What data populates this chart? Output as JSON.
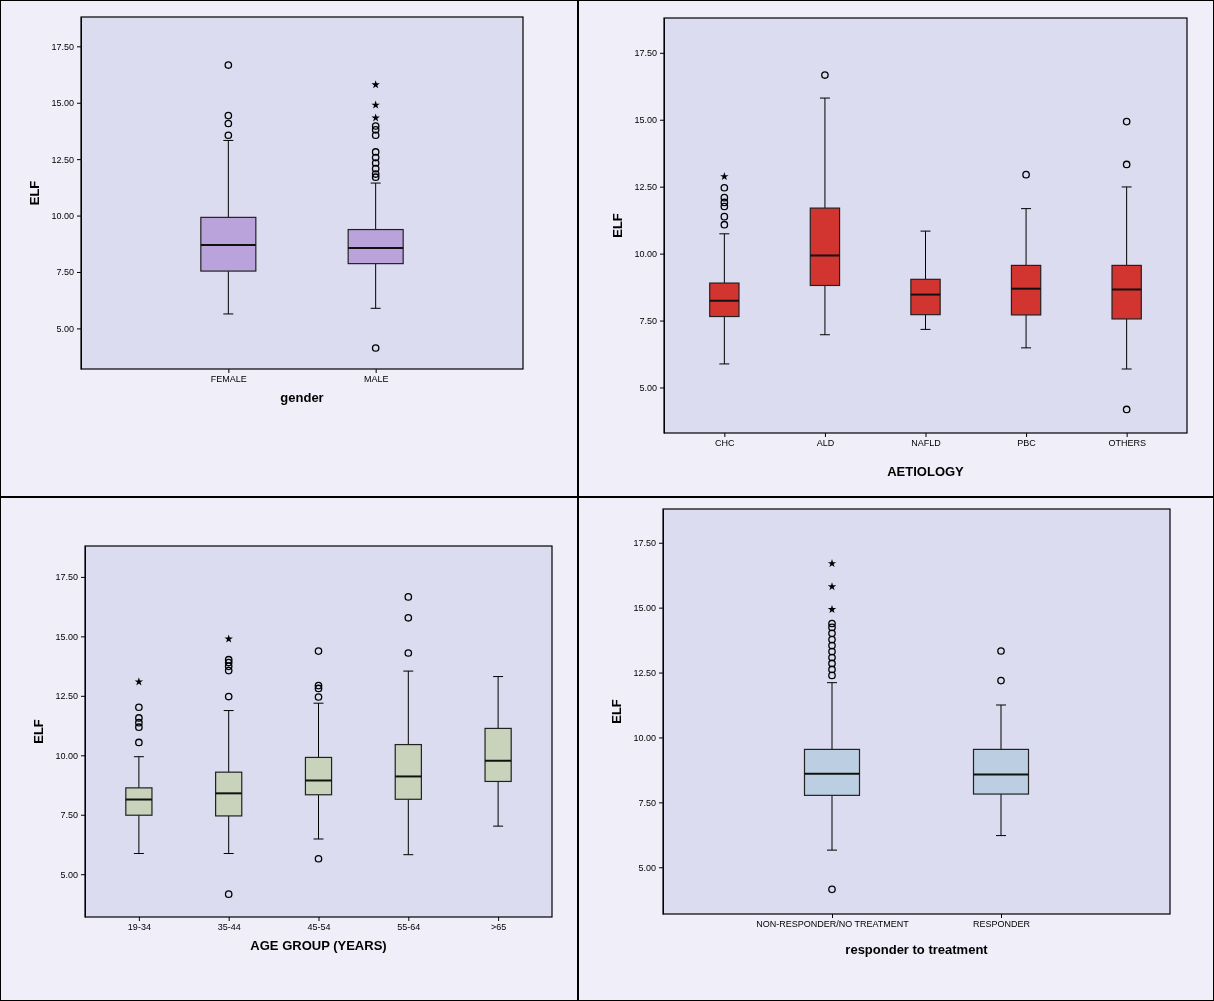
{
  "chart_data": [
    {
      "type": "box",
      "xlabel": "gender",
      "ylabel": "ELF",
      "color": "#b9a3da",
      "categories": [
        "FEMALE",
        "MALE"
      ],
      "ylim": [
        3.2,
        18.8
      ],
      "yticks": [
        {
          "value": 5,
          "label": "5.00"
        },
        {
          "value": 7.5,
          "label": "7.50"
        },
        {
          "value": 10,
          "label": "10.00"
        },
        {
          "value": 12.5,
          "label": "12.50"
        },
        {
          "value": 15,
          "label": "15.00"
        },
        {
          "value": 17.5,
          "label": "17.50"
        }
      ],
      "boxes": [
        {
          "low": 5.64,
          "q1": 7.54,
          "median": 8.69,
          "q3": 9.92,
          "high": 13.33,
          "outliers": [
            16.67,
            14.43,
            14.08,
            13.56
          ]
        },
        {
          "low": 5.89,
          "q1": 7.87,
          "median": 8.56,
          "q3": 9.38,
          "high": 11.44,
          "outliers": [
            4.13,
            13.56,
            13.8,
            13.97,
            12.82,
            12.57,
            12.33,
            12.08,
            11.84,
            11.7
          ]
        }
      ],
      "series": [
        {
          "type": "scatter",
          "marker": "star",
          "color": "#000000",
          "x": [
            "MALE",
            "MALE",
            "MALE"
          ],
          "values": [
            15.8,
            14.9,
            14.33
          ]
        }
      ]
    },
    {
      "type": "box",
      "xlabel": "AETIOLOGY",
      "ylabel": "ELF",
      "color": "#d2342f",
      "categories": [
        "CHC",
        "ALD",
        "NAFLD",
        "PBC",
        "OTHERS"
      ],
      "ylim": [
        3.3,
        18.8
      ],
      "yticks": [
        {
          "value": 5,
          "label": "5.00"
        },
        {
          "value": 7.5,
          "label": "7.50"
        },
        {
          "value": 10,
          "label": "10.00"
        },
        {
          "value": 12.5,
          "label": "12.50"
        },
        {
          "value": 15,
          "label": "15.00"
        },
        {
          "value": 17.5,
          "label": "17.50"
        }
      ],
      "boxes": [
        {
          "low": 5.88,
          "q1": 7.65,
          "median": 8.24,
          "q3": 8.9,
          "high": 10.74,
          "outliers": [
            12.46,
            12.09,
            11.91,
            11.76,
            11.38,
            11.08
          ]
        },
        {
          "low": 6.97,
          "q1": 8.81,
          "median": 9.93,
          "q3": 11.7,
          "high": 15.81,
          "outliers": [
            16.67
          ]
        },
        {
          "low": 7.17,
          "q1": 7.72,
          "median": 8.47,
          "q3": 9.04,
          "high": 10.84
        },
        {
          "low": 6.48,
          "q1": 7.71,
          "median": 8.69,
          "q3": 9.56,
          "high": 11.68,
          "outliers": [
            12.95
          ]
        },
        {
          "low": 5.69,
          "q1": 7.56,
          "median": 8.66,
          "q3": 9.56,
          "high": 12.49,
          "outliers": [
            14.93,
            13.33,
            4.18
          ]
        }
      ],
      "series": [
        {
          "type": "scatter",
          "marker": "star",
          "color": "#000000",
          "x": [
            "CHC"
          ],
          "values": [
            12.88
          ]
        }
      ]
    },
    {
      "type": "box",
      "xlabel": "AGE GROUP (YEARS)",
      "ylabel": "ELF",
      "color": "#c9d3bb",
      "categories": [
        "19-34",
        "35-44",
        "45-54",
        "55-64",
        ">65"
      ],
      "ylim": [
        3.2,
        18.8
      ],
      "yticks": [
        {
          "value": 5,
          "label": "5.00"
        },
        {
          "value": 7.5,
          "label": "7.50"
        },
        {
          "value": 10,
          "label": "10.00"
        },
        {
          "value": 12.5,
          "label": "12.50"
        },
        {
          "value": 15,
          "label": "15.00"
        },
        {
          "value": 17.5,
          "label": "17.50"
        }
      ],
      "boxes": [
        {
          "low": 5.87,
          "q1": 7.48,
          "median": 8.14,
          "q3": 8.63,
          "high": 9.94,
          "outliers": [
            12.02,
            11.57,
            11.37,
            11.18,
            10.54
          ]
        },
        {
          "low": 5.87,
          "q1": 7.45,
          "median": 8.4,
          "q3": 9.29,
          "high": 11.88,
          "outliers": [
            4.16,
            12.47,
            13.56,
            13.74,
            14.02,
            13.9
          ]
        },
        {
          "low": 6.48,
          "q1": 8.34,
          "median": 8.94,
          "q3": 9.91,
          "high": 12.19,
          "outliers": [
            5.65,
            14.38,
            12.93,
            12.81,
            12.45
          ]
        },
        {
          "low": 5.82,
          "q1": 8.15,
          "median": 9.11,
          "q3": 10.45,
          "high": 13.54,
          "outliers": [
            16.66,
            15.78,
            14.3
          ]
        },
        {
          "low": 7.02,
          "q1": 8.9,
          "median": 9.77,
          "q3": 11.13,
          "high": 13.31
        }
      ],
      "series": [
        {
          "type": "scatter",
          "marker": "star",
          "color": "#000000",
          "x": [
            "19-34",
            "35-44"
          ],
          "values": [
            13.09,
            14.89
          ]
        }
      ]
    },
    {
      "type": "box",
      "xlabel": "responder to treatment",
      "ylabel": "ELF",
      "color": "#bccfe2",
      "categories": [
        "NON-RESPONDER/NO TREATMENT",
        "RESPONDER"
      ],
      "ylim": [
        3.2,
        18.8
      ],
      "yticks": [
        {
          "value": 5,
          "label": "5.00"
        },
        {
          "value": 7.5,
          "label": "7.50"
        },
        {
          "value": 10,
          "label": "10.00"
        },
        {
          "value": 12.5,
          "label": "12.50"
        },
        {
          "value": 15,
          "label": "15.00"
        },
        {
          "value": 17.5,
          "label": "17.50"
        }
      ],
      "boxes": [
        {
          "low": 5.66,
          "q1": 7.77,
          "median": 8.6,
          "q3": 9.54,
          "high": 12.11,
          "outliers": [
            4.15,
            14.39,
            14.24,
            14.01,
            13.77,
            13.54,
            13.31,
            13.08,
            12.85,
            12.62,
            12.39
          ]
        },
        {
          "low": 6.22,
          "q1": 7.82,
          "median": 8.57,
          "q3": 9.54,
          "high": 11.25,
          "outliers": [
            13.33,
            12.19
          ]
        }
      ],
      "series": [
        {
          "type": "scatter",
          "marker": "star",
          "color": "#000000",
          "x": [
            "NON-RESPONDER/NO TREATMENT",
            "NON-RESPONDER/NO TREATMENT",
            "NON-RESPONDER/NO TREATMENT"
          ],
          "values": [
            16.7,
            15.81,
            14.93
          ]
        }
      ]
    }
  ]
}
